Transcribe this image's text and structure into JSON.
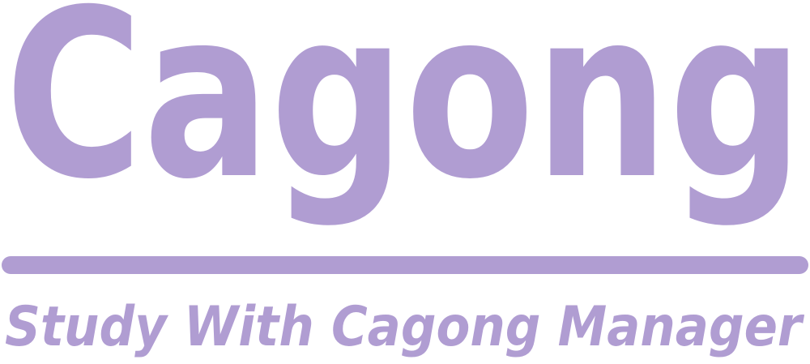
{
  "logo": {
    "title": "Cagong",
    "tagline": "Study With Cagong Manager"
  }
}
